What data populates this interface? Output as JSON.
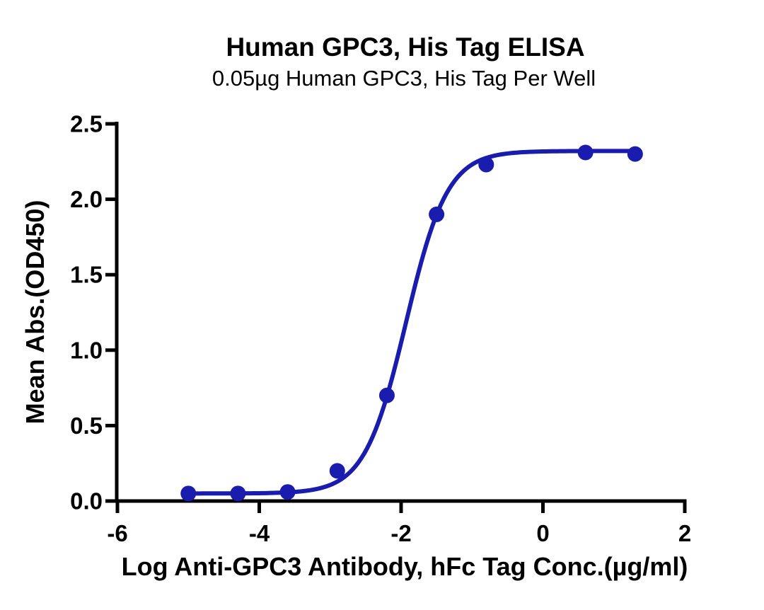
{
  "chart_data": {
    "type": "scatter",
    "title": "Human GPC3, His Tag ELISA",
    "subtitle": "0.05µg Human GPC3, His Tag Per Well",
    "xlabel": "Log Anti-GPC3 Antibody, hFc Tag Conc.(µg/ml)",
    "ylabel": "Mean Abs.(OD450)",
    "xlim": [
      -6,
      2
    ],
    "ylim": [
      0,
      2.5
    ],
    "x_ticks": [
      {
        "value": -6,
        "label": "-6"
      },
      {
        "value": -4,
        "label": "-4"
      },
      {
        "value": -2,
        "label": "-2"
      },
      {
        "value": 0,
        "label": "0"
      },
      {
        "value": 2,
        "label": "2"
      }
    ],
    "y_ticks": [
      {
        "value": 0.0,
        "label": "0.0"
      },
      {
        "value": 0.5,
        "label": "0.5"
      },
      {
        "value": 1.0,
        "label": "1.0"
      },
      {
        "value": 1.5,
        "label": "1.5"
      },
      {
        "value": 2.0,
        "label": "2.0"
      },
      {
        "value": 2.5,
        "label": "2.5"
      }
    ],
    "points": [
      {
        "x": -5.0,
        "y": 0.05
      },
      {
        "x": -4.3,
        "y": 0.05
      },
      {
        "x": -3.6,
        "y": 0.06
      },
      {
        "x": -2.9,
        "y": 0.2
      },
      {
        "x": -2.2,
        "y": 0.7
      },
      {
        "x": -1.5,
        "y": 1.9
      },
      {
        "x": -0.8,
        "y": 2.23
      },
      {
        "x": 0.6,
        "y": 2.31
      },
      {
        "x": 1.3,
        "y": 2.3
      }
    ],
    "fit_curve": {
      "model": "4PL sigmoid",
      "bottom": 0.05,
      "top": 2.32,
      "logEC50": -1.93,
      "hillslope": 1.49,
      "x_start": -5.0,
      "x_end": 1.3
    },
    "colors": {
      "series": "#1a1cae",
      "axis": "#000000",
      "text": "#000000",
      "background": "#ffffff"
    },
    "grid": false,
    "legend": "none"
  }
}
